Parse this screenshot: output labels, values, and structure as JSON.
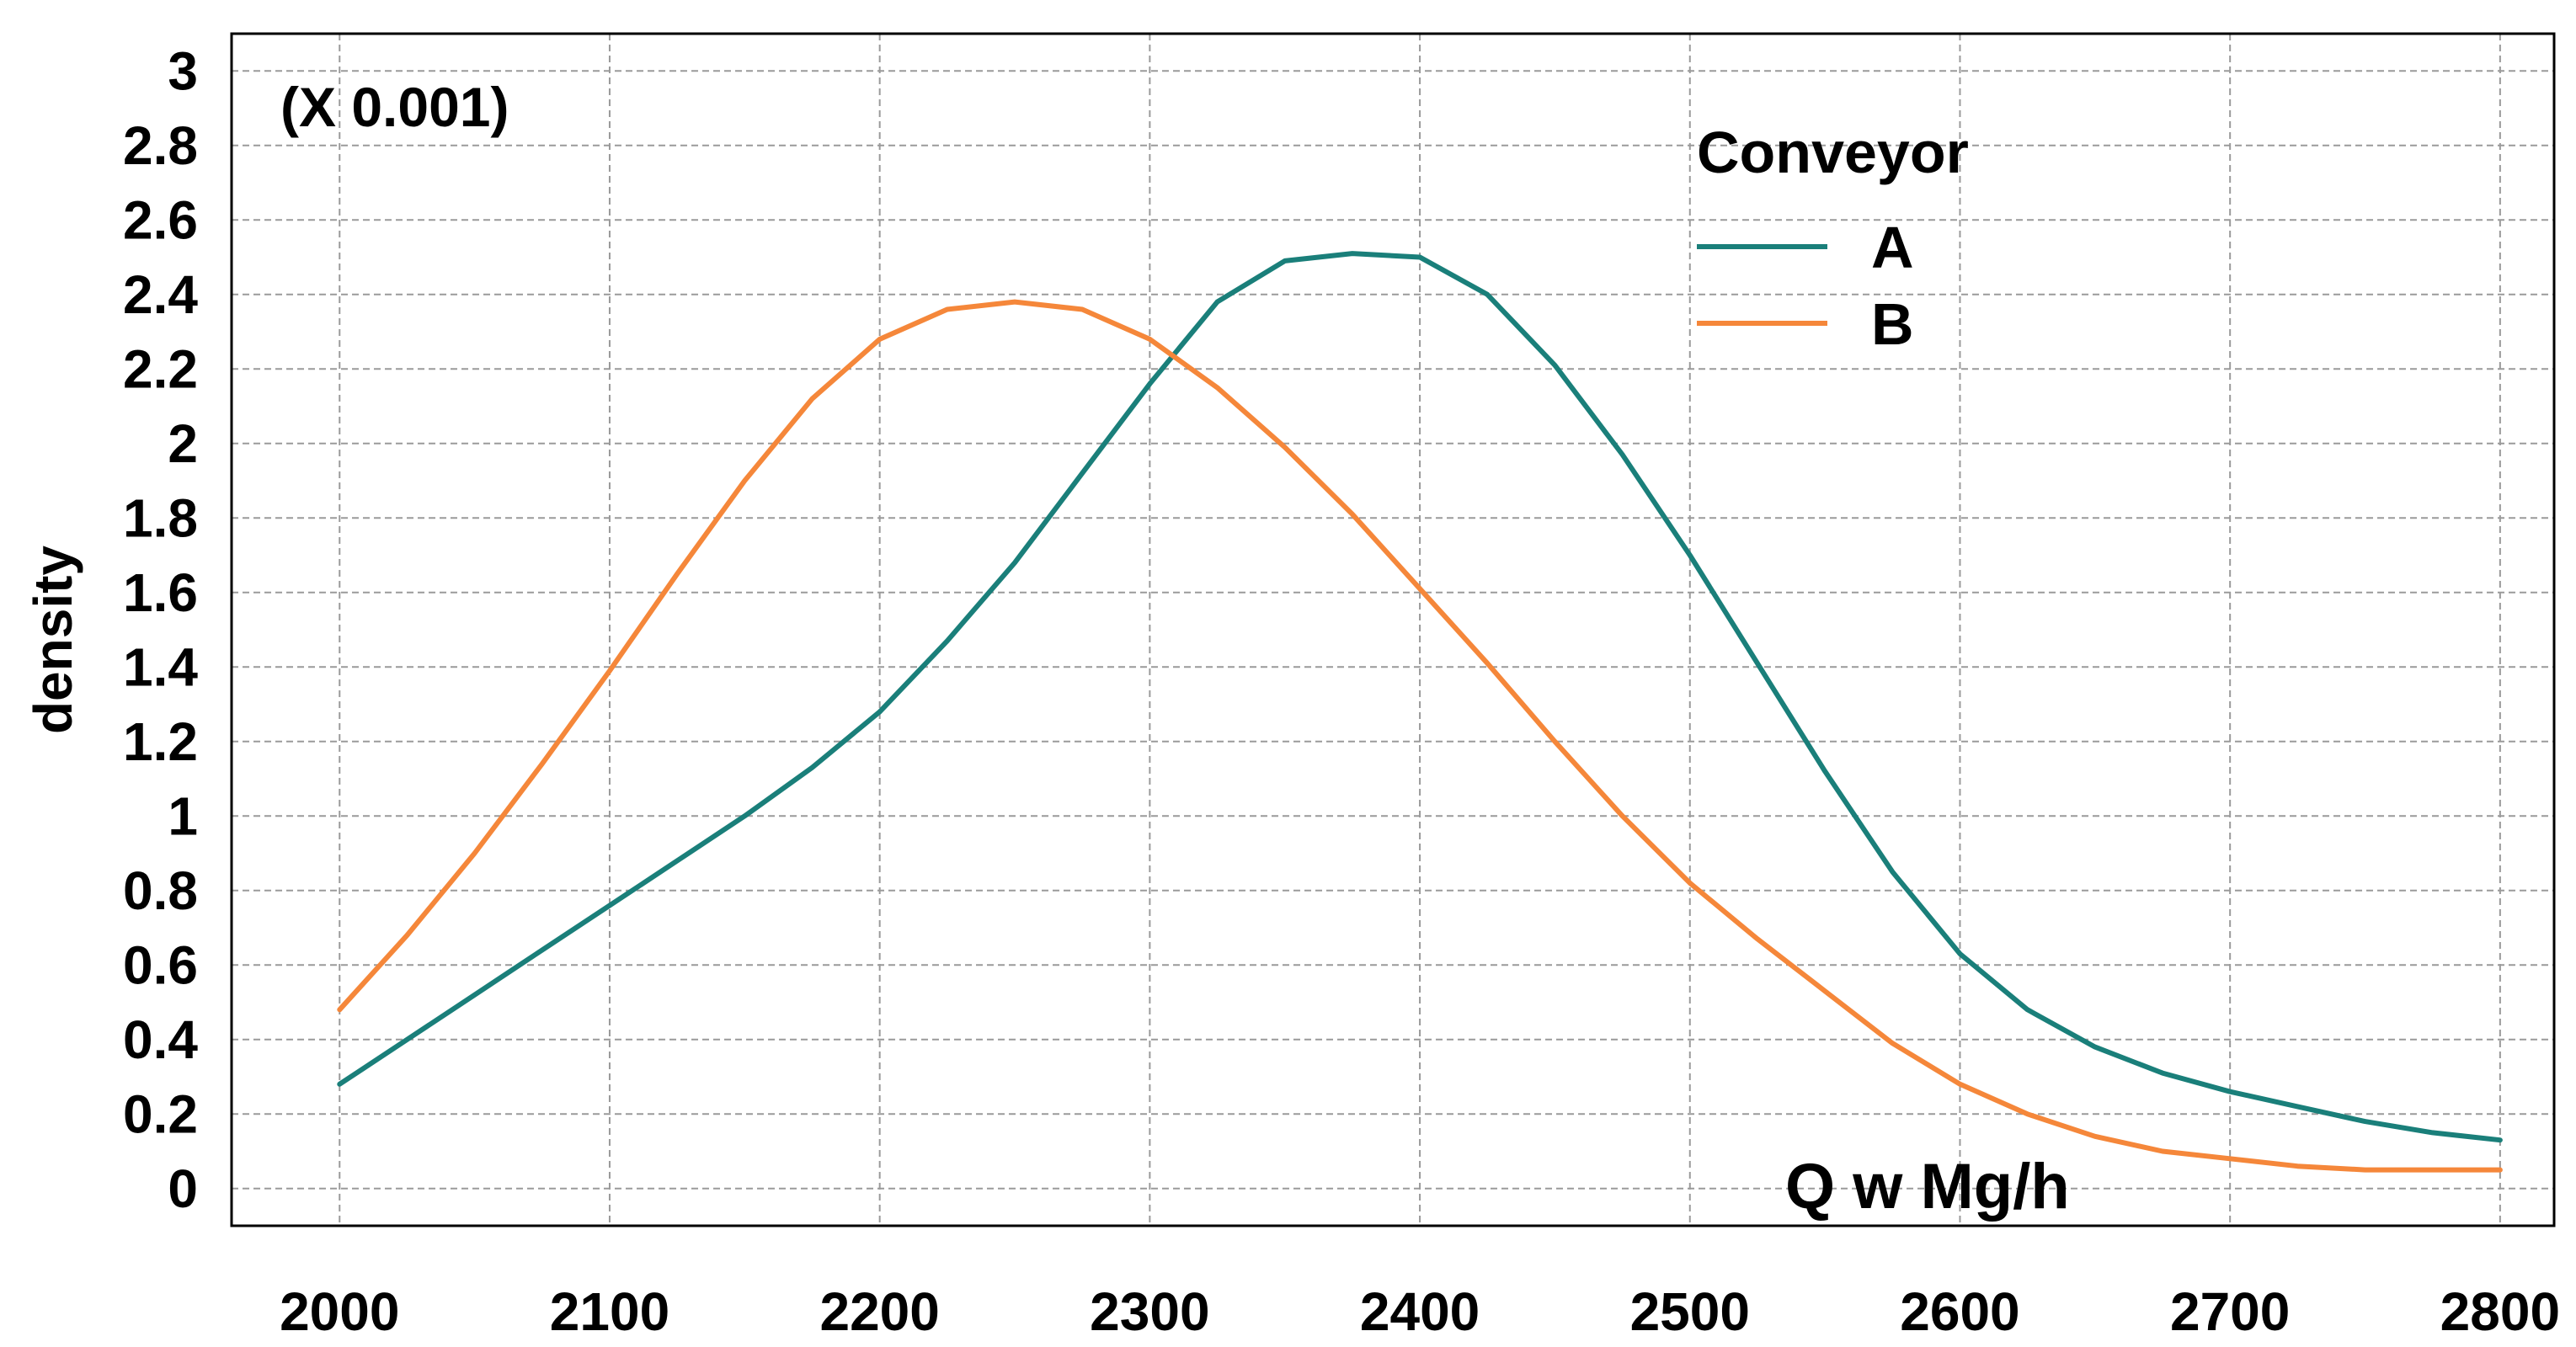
{
  "chart_data": {
    "type": "line",
    "title": "",
    "xlabel": "Q w Mg/h",
    "ylabel": "density",
    "scale_note": "(X 0.001)",
    "xlim": [
      1960,
      2820
    ],
    "ylim": [
      -0.1,
      3.1
    ],
    "x_ticks": [
      2000,
      2100,
      2200,
      2300,
      2400,
      2500,
      2600,
      2700,
      2800
    ],
    "y_ticks": [
      0,
      0.2,
      0.4,
      0.6,
      0.8,
      1,
      1.2,
      1.4,
      1.6,
      1.8,
      2,
      2.2,
      2.4,
      2.6,
      2.8,
      3
    ],
    "y_tick_labels": [
      "0",
      "0.2",
      "0.4",
      "0.6",
      "0.8",
      "1",
      "1.2",
      "1.4",
      "1.6",
      "1.8",
      "2",
      "2.2",
      "2.4",
      "2.6",
      "2.8",
      "3"
    ],
    "x_tick_labels": [
      "2000",
      "2100",
      "2200",
      "2300",
      "2400",
      "2500",
      "2600",
      "2700",
      "2800"
    ],
    "grid": true,
    "legend": {
      "title": "Conveyor",
      "position": "top-right"
    },
    "x": [
      2000,
      2025,
      2050,
      2075,
      2100,
      2125,
      2150,
      2175,
      2200,
      2225,
      2250,
      2275,
      2300,
      2325,
      2350,
      2375,
      2400,
      2425,
      2450,
      2475,
      2500,
      2525,
      2550,
      2575,
      2600,
      2625,
      2650,
      2675,
      2700,
      2725,
      2750,
      2775,
      2800
    ],
    "series": [
      {
        "name": "A",
        "color": "#1a7f7a",
        "values": [
          0.28,
          0.4,
          0.52,
          0.64,
          0.76,
          0.88,
          1.0,
          1.13,
          1.28,
          1.47,
          1.68,
          1.92,
          2.16,
          2.38,
          2.49,
          2.51,
          2.5,
          2.4,
          2.21,
          1.97,
          1.7,
          1.41,
          1.12,
          0.85,
          0.63,
          0.48,
          0.38,
          0.31,
          0.26,
          0.22,
          0.18,
          0.15,
          0.13
        ]
      },
      {
        "name": "B",
        "color": "#f5873a",
        "values": [
          0.48,
          0.68,
          0.9,
          1.14,
          1.39,
          1.65,
          1.9,
          2.12,
          2.28,
          2.36,
          2.38,
          2.36,
          2.28,
          2.15,
          1.99,
          1.81,
          1.61,
          1.41,
          1.2,
          1.0,
          0.82,
          0.67,
          0.53,
          0.39,
          0.28,
          0.2,
          0.14,
          0.1,
          0.08,
          0.06,
          0.05,
          0.05,
          0.05
        ]
      }
    ]
  }
}
